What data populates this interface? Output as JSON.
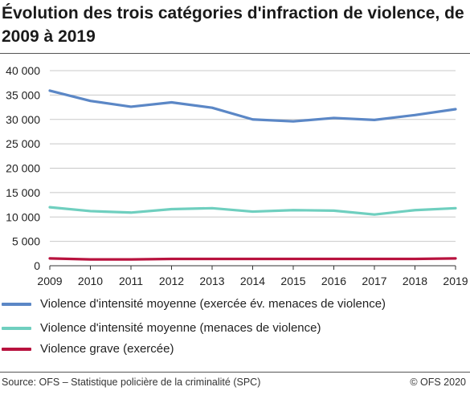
{
  "title": "Évolution des trois catégories d'infraction de violence, de 2009 à 2019",
  "source": "Source: OFS – Statistique policière de la criminalité (SPC)",
  "copyright": "© OFS 2020",
  "colors": {
    "series1": "#5b87c6",
    "series2": "#6fcfbf",
    "series3": "#b8123e",
    "grid": "#c8c8c8",
    "axis": "#333333"
  },
  "chart_data": {
    "type": "line",
    "title": "Évolution des trois catégories d'infraction de violence, de 2009 à 2019",
    "xlabel": "",
    "ylabel": "",
    "ylim": [
      0,
      40000
    ],
    "yticks": [
      0,
      5000,
      10000,
      15000,
      20000,
      25000,
      30000,
      35000,
      40000
    ],
    "ytick_labels": [
      "0",
      "5 000",
      "10 000",
      "15 000",
      "20 000",
      "25 000",
      "30 000",
      "35 000",
      "40 000"
    ],
    "grid": true,
    "legend_position": "bottom",
    "categories": [
      "2009",
      "2010",
      "2011",
      "2012",
      "2013",
      "2014",
      "2015",
      "2016",
      "2017",
      "2018",
      "2019"
    ],
    "series": [
      {
        "name": "Violence d'intensité moyenne (exercée év. menaces de violence)",
        "color": "#5b87c6",
        "values": [
          35900,
          33800,
          32600,
          33500,
          32400,
          30000,
          29600,
          30300,
          29900,
          30900,
          32100
        ]
      },
      {
        "name": "Violence d'intensité moyenne (menaces de violence)",
        "color": "#6fcfbf",
        "values": [
          12000,
          11200,
          10900,
          11600,
          11800,
          11100,
          11400,
          11300,
          10500,
          11400,
          11800
        ]
      },
      {
        "name": "Violence grave (exercée)",
        "color": "#b8123e",
        "values": [
          1500,
          1300,
          1300,
          1400,
          1400,
          1400,
          1400,
          1400,
          1400,
          1400,
          1500
        ]
      }
    ]
  }
}
